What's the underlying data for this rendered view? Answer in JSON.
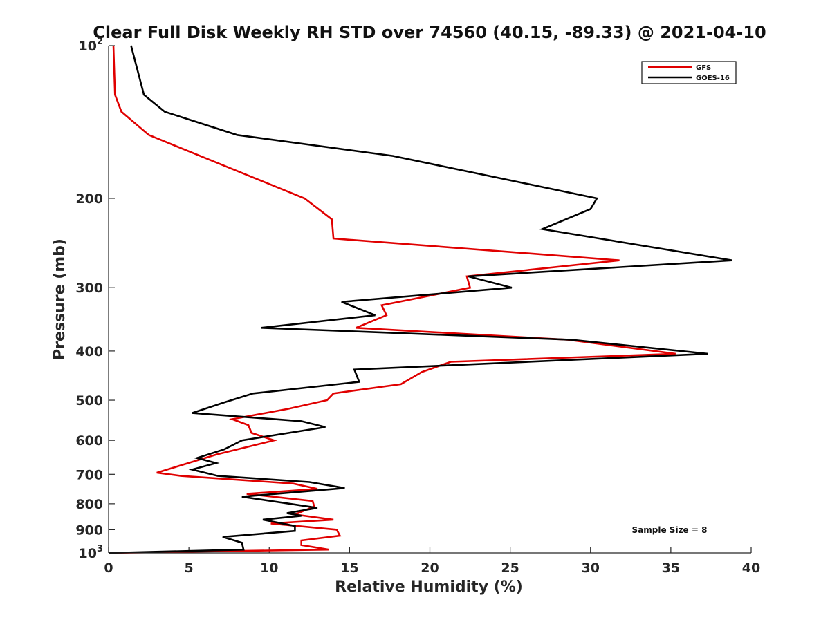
{
  "chart_data": {
    "type": "line",
    "title": "Clear Full Disk Weekly RH STD over 74560 (40.15, -89.33) @ 2021-04-10",
    "xlabel": "Relative Humidity (%)",
    "ylabel": "Pressure (mb)",
    "xlim": [
      0,
      40
    ],
    "ylim": [
      100,
      1000
    ],
    "y_scale": "log",
    "y_reversed": true,
    "grid": false,
    "legend_position": "top-right",
    "x_ticks": [
      0,
      5,
      10,
      15,
      20,
      25,
      30,
      35,
      40
    ],
    "y_ticks": [
      {
        "value": 100,
        "base": "10",
        "exp": "2"
      },
      {
        "value": 200,
        "text": "200"
      },
      {
        "value": 300,
        "text": "300"
      },
      {
        "value": 400,
        "text": "400"
      },
      {
        "value": 500,
        "text": "500"
      },
      {
        "value": 600,
        "text": "600"
      },
      {
        "value": 700,
        "text": "700"
      },
      {
        "value": 800,
        "text": "800"
      },
      {
        "value": 900,
        "text": "900"
      },
      {
        "value": 1000,
        "base": "10",
        "exp": "3"
      }
    ],
    "annotation": "Sample Size = 8",
    "series": [
      {
        "name": "GFS",
        "color": "#e00000",
        "points": [
          [
            0.3,
            100
          ],
          [
            0.4,
            125
          ],
          [
            0.8,
            135
          ],
          [
            2.5,
            150
          ],
          [
            6.7,
            170
          ],
          [
            12.2,
            200
          ],
          [
            13.9,
            220
          ],
          [
            14.0,
            240
          ],
          [
            31.8,
            265
          ],
          [
            22.3,
            285
          ],
          [
            22.5,
            300
          ],
          [
            17.0,
            325
          ],
          [
            17.3,
            340
          ],
          [
            15.4,
            360
          ],
          [
            28.6,
            380
          ],
          [
            35.3,
            405
          ],
          [
            21.3,
            420
          ],
          [
            19.5,
            440
          ],
          [
            18.2,
            465
          ],
          [
            14.0,
            485
          ],
          [
            13.6,
            500
          ],
          [
            11.2,
            520
          ],
          [
            7.7,
            545
          ],
          [
            8.7,
            560
          ],
          [
            8.9,
            580
          ],
          [
            10.3,
            600
          ],
          [
            6.7,
            640
          ],
          [
            3.0,
            695
          ],
          [
            4.5,
            705
          ],
          [
            11.5,
            730
          ],
          [
            13.0,
            748
          ],
          [
            8.6,
            765
          ],
          [
            12.7,
            790
          ],
          [
            12.8,
            810
          ],
          [
            11.6,
            840
          ],
          [
            14.0,
            860
          ],
          [
            10.1,
            875
          ],
          [
            14.2,
            900
          ],
          [
            14.4,
            925
          ],
          [
            12.0,
            945
          ],
          [
            12.0,
            965
          ],
          [
            13.7,
            985
          ],
          [
            0.0,
            1000
          ]
        ]
      },
      {
        "name": "GOES-16",
        "color": "#000000",
        "points": [
          [
            1.4,
            100
          ],
          [
            2.2,
            125
          ],
          [
            3.5,
            135
          ],
          [
            8.0,
            150
          ],
          [
            17.7,
            165
          ],
          [
            30.4,
            200
          ],
          [
            30.0,
            210
          ],
          [
            27.0,
            230
          ],
          [
            38.8,
            265
          ],
          [
            22.4,
            285
          ],
          [
            25.1,
            300
          ],
          [
            14.5,
            320
          ],
          [
            16.6,
            340
          ],
          [
            9.5,
            360
          ],
          [
            28.8,
            380
          ],
          [
            37.3,
            405
          ],
          [
            15.3,
            435
          ],
          [
            15.6,
            460
          ],
          [
            9.0,
            485
          ],
          [
            7.2,
            505
          ],
          [
            5.2,
            530
          ],
          [
            12.0,
            550
          ],
          [
            13.5,
            565
          ],
          [
            8.3,
            600
          ],
          [
            7.2,
            625
          ],
          [
            5.5,
            650
          ],
          [
            6.7,
            665
          ],
          [
            5.2,
            685
          ],
          [
            6.8,
            705
          ],
          [
            12.5,
            725
          ],
          [
            14.7,
            745
          ],
          [
            8.3,
            775
          ],
          [
            13.0,
            815
          ],
          [
            11.1,
            835
          ],
          [
            12.0,
            845
          ],
          [
            9.6,
            860
          ],
          [
            11.6,
            885
          ],
          [
            11.6,
            905
          ],
          [
            7.1,
            930
          ],
          [
            8.3,
            955
          ],
          [
            8.4,
            985
          ],
          [
            0.0,
            1000
          ]
        ]
      }
    ]
  }
}
